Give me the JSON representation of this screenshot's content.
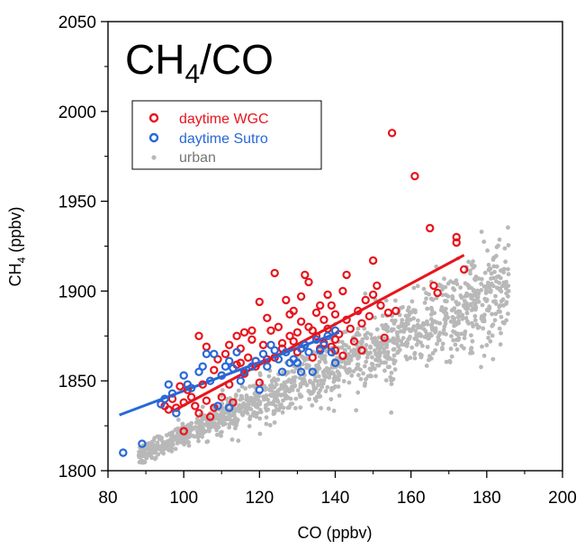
{
  "chart_data": {
    "type": "scatter",
    "title": "CH4/CO",
    "title_parts": {
      "main": "CH",
      "sub": "4",
      "rest": "/CO"
    },
    "xlabel": "CO (ppbv)",
    "ylabel_parts": {
      "main": "CH",
      "sub": "4",
      "rest": " (ppbv)"
    },
    "xlim": [
      80,
      200
    ],
    "ylim": [
      1800,
      2050
    ],
    "xticks": [
      80,
      100,
      120,
      140,
      160,
      180,
      200
    ],
    "yticks": [
      1800,
      1850,
      1900,
      1950,
      2000,
      2050
    ],
    "grid": false,
    "legend_position": "top-left",
    "series": [
      {
        "name": "daytime WGC",
        "color": "#e8141c",
        "marker": "open-circle",
        "points": [
          [
            95,
            1836
          ],
          [
            96,
            1834
          ],
          [
            97,
            1840
          ],
          [
            98,
            1835
          ],
          [
            99,
            1847
          ],
          [
            100,
            1838
          ],
          [
            101,
            1845
          ],
          [
            102,
            1841
          ],
          [
            103,
            1836
          ],
          [
            104,
            1832
          ],
          [
            104,
            1875
          ],
          [
            105,
            1848
          ],
          [
            106,
            1869
          ],
          [
            106,
            1839
          ],
          [
            107,
            1830
          ],
          [
            108,
            1856
          ],
          [
            108,
            1835
          ],
          [
            109,
            1862
          ],
          [
            110,
            1841
          ],
          [
            110,
            1853
          ],
          [
            111,
            1865
          ],
          [
            112,
            1848
          ],
          [
            112,
            1870
          ],
          [
            113,
            1838
          ],
          [
            114,
            1859
          ],
          [
            114,
            1875
          ],
          [
            115,
            1860
          ],
          [
            115,
            1868
          ],
          [
            116,
            1877
          ],
          [
            116,
            1854
          ],
          [
            117,
            1863
          ],
          [
            118,
            1873
          ],
          [
            118,
            1878
          ],
          [
            119,
            1858
          ],
          [
            119,
            1861
          ],
          [
            120,
            1894
          ],
          [
            120,
            1849
          ],
          [
            121,
            1870
          ],
          [
            122,
            1862
          ],
          [
            122,
            1885
          ],
          [
            123,
            1878
          ],
          [
            124,
            1910
          ],
          [
            124,
            1863
          ],
          [
            125,
            1880
          ],
          [
            126,
            1871
          ],
          [
            126,
            1868
          ],
          [
            127,
            1895
          ],
          [
            128,
            1887
          ],
          [
            128,
            1875
          ],
          [
            129,
            1872
          ],
          [
            129,
            1889
          ],
          [
            130,
            1877
          ],
          [
            130,
            1866
          ],
          [
            131,
            1897
          ],
          [
            131,
            1883
          ],
          [
            132,
            1909
          ],
          [
            132,
            1870
          ],
          [
            133,
            1905
          ],
          [
            133,
            1880
          ],
          [
            134,
            1878
          ],
          [
            134,
            1863
          ],
          [
            135,
            1888
          ],
          [
            135,
            1875
          ],
          [
            136,
            1892
          ],
          [
            136,
            1868
          ],
          [
            137,
            1884
          ],
          [
            137,
            1871
          ],
          [
            138,
            1898
          ],
          [
            138,
            1879
          ],
          [
            139,
            1892
          ],
          [
            139,
            1869
          ],
          [
            140,
            1887
          ],
          [
            140,
            1873
          ],
          [
            141,
            1876
          ],
          [
            142,
            1864
          ],
          [
            143,
            1884
          ],
          [
            143,
            1909
          ],
          [
            144,
            1879
          ],
          [
            145,
            1872
          ],
          [
            146,
            1889
          ],
          [
            147,
            1882
          ],
          [
            148,
            1895
          ],
          [
            149,
            1886
          ],
          [
            150,
            1917
          ],
          [
            150,
            1898
          ],
          [
            151,
            1903
          ],
          [
            152,
            1892
          ],
          [
            153,
            1874
          ],
          [
            154,
            1888
          ],
          [
            155,
            1988
          ],
          [
            156,
            1889
          ],
          [
            161,
            1964
          ],
          [
            165,
            1935
          ],
          [
            166,
            1903
          ],
          [
            167,
            1899
          ],
          [
            172,
            1930
          ],
          [
            172,
            1927
          ],
          [
            174,
            1912
          ],
          [
            100,
            1822
          ],
          [
            140,
            1867
          ],
          [
            142,
            1900
          ],
          [
            147,
            1867
          ]
        ]
      },
      {
        "name": "daytime Sutro",
        "color": "#2868d8",
        "marker": "open-circle",
        "points": [
          [
            84,
            1810
          ],
          [
            89,
            1815
          ],
          [
            94,
            1837
          ],
          [
            95,
            1840
          ],
          [
            96,
            1848
          ],
          [
            97,
            1843
          ],
          [
            98,
            1832
          ],
          [
            100,
            1853
          ],
          [
            101,
            1848
          ],
          [
            102,
            1846
          ],
          [
            104,
            1855
          ],
          [
            105,
            1858
          ],
          [
            106,
            1865
          ],
          [
            107,
            1850
          ],
          [
            108,
            1865
          ],
          [
            109,
            1836
          ],
          [
            110,
            1853
          ],
          [
            111,
            1858
          ],
          [
            112,
            1835
          ],
          [
            112,
            1861
          ],
          [
            113,
            1857
          ],
          [
            114,
            1866
          ],
          [
            115,
            1850
          ],
          [
            116,
            1855
          ],
          [
            118,
            1858
          ],
          [
            119,
            1861
          ],
          [
            120,
            1845
          ],
          [
            121,
            1865
          ],
          [
            122,
            1858
          ],
          [
            123,
            1870
          ],
          [
            124,
            1867
          ],
          [
            125,
            1862
          ],
          [
            126,
            1855
          ],
          [
            127,
            1866
          ],
          [
            128,
            1860
          ],
          [
            129,
            1862
          ],
          [
            130,
            1860
          ],
          [
            131,
            1855
          ],
          [
            131,
            1868
          ],
          [
            132,
            1870
          ],
          [
            133,
            1866
          ],
          [
            134,
            1855
          ],
          [
            135,
            1873
          ],
          [
            136,
            1867
          ],
          [
            137,
            1870
          ],
          [
            138,
            1875
          ],
          [
            139,
            1866
          ],
          [
            140,
            1860
          ],
          [
            140,
            1878
          ]
        ]
      },
      {
        "name": "urban",
        "color": "#b8b8b8",
        "marker": "filled-dot"
      }
    ],
    "fits": [
      {
        "series": "daytime WGC",
        "color": "#e8141c",
        "x": [
          97,
          174
        ],
        "y": [
          1833,
          1920
        ]
      },
      {
        "series": "daytime Sutro",
        "color": "#2868d8",
        "x": [
          83,
          141
        ],
        "y": [
          1831,
          1877
        ]
      }
    ]
  }
}
